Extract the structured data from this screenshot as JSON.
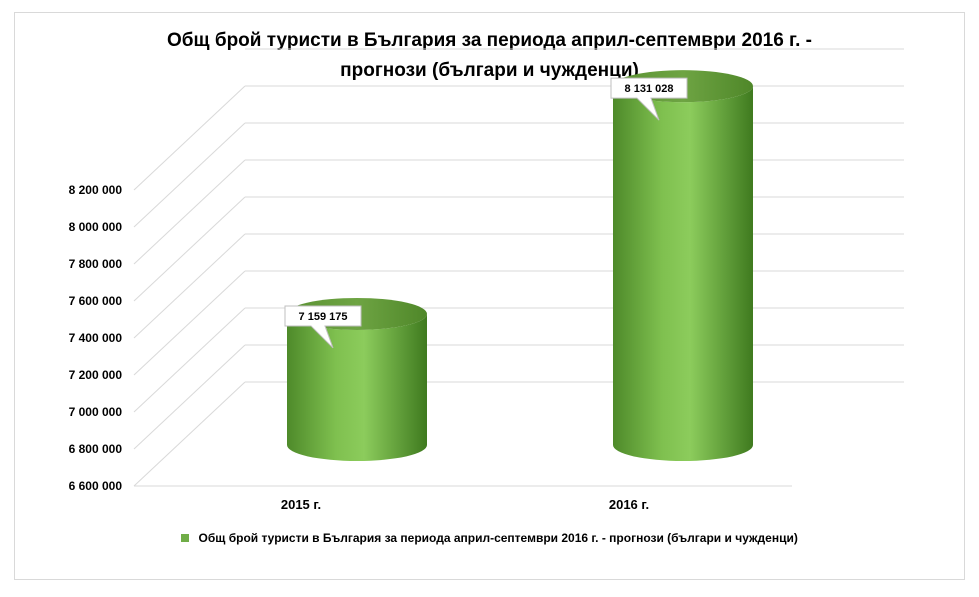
{
  "chart_data": {
    "type": "bar",
    "style": "3d-cylinder",
    "title_line1": "Общ брой туристи в България за периода април-септември 2016 г. -",
    "title_line2": "прогнози (българи и чужденци)",
    "categories": [
      "2015 г.",
      "2016 г."
    ],
    "series": [
      {
        "name": "Общ брой туристи в България за периода април-септември 2016 г. - прогнози (българи и чужденци)",
        "values": [
          7159175,
          8131028
        ],
        "labels": [
          "7 159 175",
          "8 131 028"
        ],
        "color": "#70ad47"
      }
    ],
    "yticks": [
      6600000,
      6800000,
      7000000,
      7200000,
      7400000,
      7600000,
      7800000,
      8000000,
      8200000
    ],
    "ytick_labels": [
      "6 600 000",
      "6 800 000",
      "7 000 000",
      "7 200 000",
      "7 400 000",
      "7 600 000",
      "7 800 000",
      "8 000 000",
      "8 200 000"
    ],
    "ylim": [
      6600000,
      8200000
    ],
    "grid": true,
    "legend_position": "bottom"
  }
}
